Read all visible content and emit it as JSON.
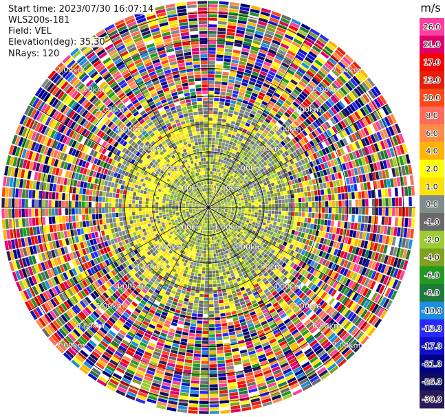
{
  "info": {
    "start_time": "Start time: 2023/07/30 16:07:14",
    "instrument": "WLS200s-181",
    "field": "Field: VEL",
    "elevation": "Elevation(deg): 35.30",
    "nrays": "NRays: 120"
  },
  "chart_data": {
    "type": "heatmap",
    "projection": "polar-ppi",
    "field": "VEL",
    "units": "m/s",
    "nrays": 120,
    "elevation_deg": 35.3,
    "range_ring_labels": [
      "1.00km",
      "2.00km",
      "3.00km",
      "4.00km",
      "5.00km",
      "6.00km",
      "7.00km"
    ],
    "range_ring_km": [
      1,
      2,
      3,
      4,
      5,
      6,
      7
    ],
    "colorbar": {
      "unit_label": "m/s",
      "tick_labels": [
        "26.0",
        "21.0",
        "17.0",
        "13.0",
        "10.0",
        "8.0",
        "6.0",
        "4.0",
        "2.0",
        "1.0",
        "0.0",
        "-1.0",
        "-2.0",
        "-4.0",
        "-6.0",
        "-8.0",
        "-10.0",
        "-13.0",
        "-17.0",
        "-21.0",
        "-26.0",
        "-30.0"
      ],
      "colors": [
        "#ff3fa0",
        "#e0006c",
        "#f80000",
        "#e4200c",
        "#ff4818",
        "#ff6a5a",
        "#ff8c48",
        "#ffb400",
        "#ffff00",
        "#ffe000",
        "#7f8c8c",
        "#6a6a6a",
        "#9ccc30",
        "#80a020",
        "#229a22",
        "#1e7a3a",
        "#1e8ee0",
        "#2828ff",
        "#1010cc",
        "#00008a",
        "#0c0c60",
        "#2a1a5a"
      ]
    }
  }
}
